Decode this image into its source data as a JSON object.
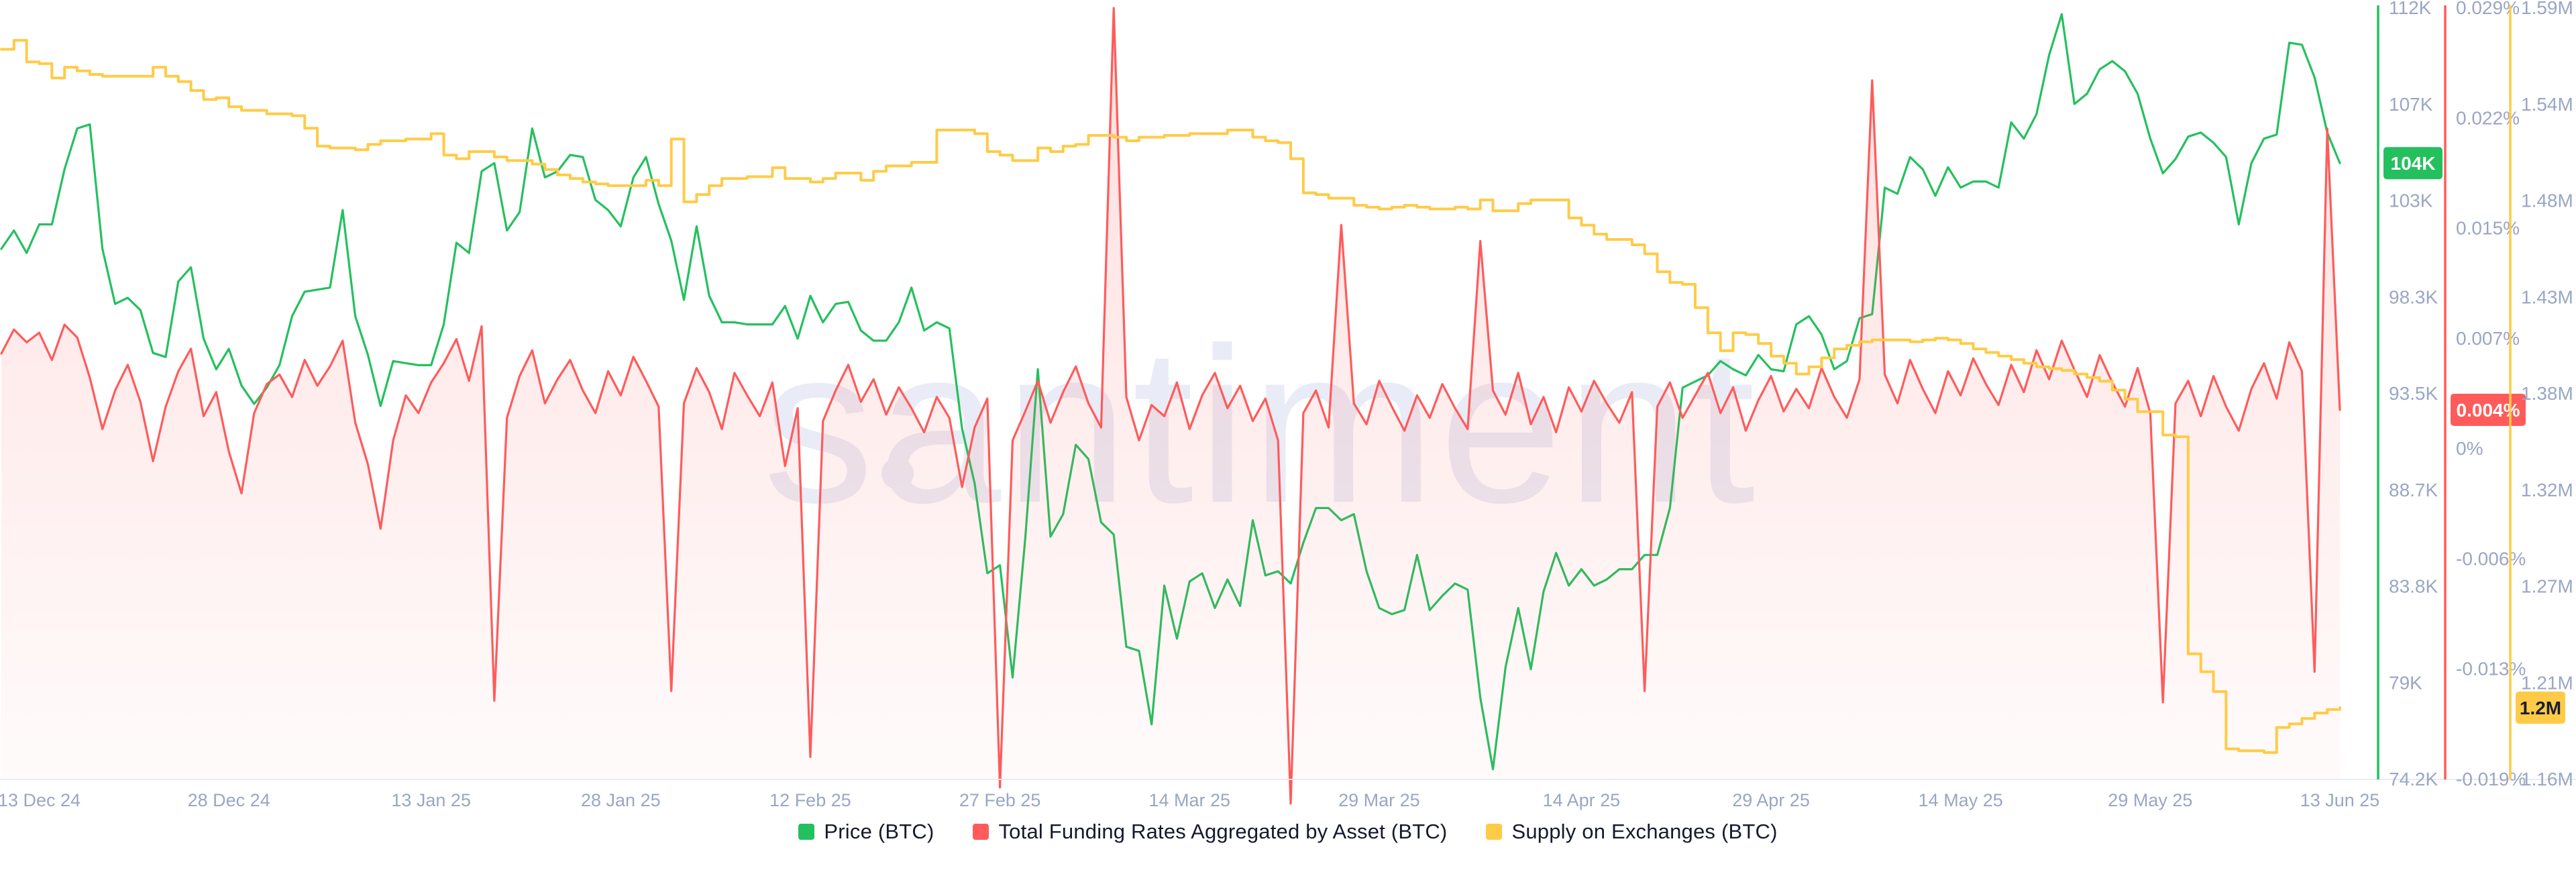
{
  "watermark": "santiment",
  "colors": {
    "price": "#24c05e",
    "funding": "#ff5b5b",
    "supply": "#ffcb47",
    "axis_text": "#9aa6c4",
    "axis_line_bottom": "#e8ebf3",
    "watermark": "#e9ecf6",
    "badge_text_light": "#ffffff",
    "badge_text_dark": "#1b1e33",
    "legend_text": "#15192d",
    "funding_fill_top": "rgba(255,91,91,0.20)",
    "funding_fill_bottom": "rgba(255,91,91,0.02)"
  },
  "legend": [
    {
      "id": "price",
      "label": "Price (BTC)"
    },
    {
      "id": "funding",
      "label": "Total Funding Rates Aggregated by Asset (BTC)"
    },
    {
      "id": "supply",
      "label": "Supply on Exchanges (BTC)"
    }
  ],
  "chart_data": {
    "type": "line",
    "title": "",
    "grid": false,
    "legend_position": "bottom",
    "n_points": 186,
    "x_tick_labels": [
      "13 Dec 24",
      "28 Dec 24",
      "13 Jan 25",
      "28 Jan 25",
      "12 Feb 25",
      "27 Feb 25",
      "14 Mar 25",
      "29 Mar 25",
      "14 Apr 25",
      "29 Apr 25",
      "14 May 25",
      "29 May 25",
      "13 Jun 25"
    ],
    "x_tick_day_index": [
      3,
      18,
      34,
      49,
      64,
      79,
      94,
      109,
      125,
      140,
      155,
      170,
      185
    ],
    "axes": {
      "price": {
        "min": 74.2,
        "max": 112,
        "ticks": [
          "112K",
          "107K",
          "103K",
          "98.3K",
          "93.5K",
          "88.7K",
          "83.8K",
          "79K",
          "74.2K"
        ],
        "current_label": "104K",
        "current_value": 104.4
      },
      "funding": {
        "min": -0.019,
        "max": 0.029,
        "ticks": [
          "0.029%",
          "0.022%",
          "0.015%",
          "0.007%",
          "0%",
          "-0.006%",
          "-0.013%",
          "-0.019%"
        ],
        "current_label": "0.004%",
        "current_value": 0.004
      },
      "supply": {
        "min": 1.16,
        "max": 1.59,
        "ticks": [
          "1.59M",
          "1.54M",
          "1.48M",
          "1.43M",
          "1.38M",
          "1.32M",
          "1.27M",
          "1.21M",
          "1.16M"
        ],
        "current_label": "1.2M",
        "current_value": 1.2
      }
    },
    "series": [
      {
        "name": "Price (BTC)",
        "axis": "price",
        "unit": "K USD",
        "render": "line",
        "values": [
          100.2,
          101.1,
          100.0,
          101.4,
          101.4,
          104.1,
          106.1,
          106.3,
          100.2,
          97.5,
          97.8,
          97.2,
          95.1,
          94.9,
          98.6,
          99.3,
          95.8,
          94.3,
          95.3,
          93.5,
          92.6,
          93.4,
          94.5,
          96.9,
          98.1,
          98.2,
          98.3,
          102.1,
          96.9,
          95.0,
          92.5,
          94.7,
          94.6,
          94.5,
          94.5,
          96.5,
          100.5,
          100.0,
          104.0,
          104.4,
          101.1,
          102.0,
          106.1,
          103.7,
          104.0,
          104.8,
          104.7,
          102.6,
          102.1,
          101.3,
          103.7,
          104.7,
          102.4,
          100.6,
          97.7,
          101.3,
          97.9,
          96.6,
          96.6,
          96.5,
          96.5,
          96.5,
          97.4,
          95.8,
          97.9,
          96.6,
          97.5,
          97.6,
          96.2,
          95.7,
          95.7,
          96.6,
          98.3,
          96.2,
          96.6,
          96.3,
          91.4,
          88.7,
          84.3,
          84.7,
          79.2,
          86.0,
          94.3,
          86.1,
          87.2,
          90.6,
          89.9,
          86.8,
          86.2,
          80.7,
          80.5,
          76.9,
          83.7,
          81.1,
          83.9,
          84.3,
          82.6,
          84.0,
          82.7,
          86.9,
          84.2,
          84.4,
          83.8,
          85.8,
          87.5,
          87.5,
          86.9,
          87.2,
          84.4,
          82.6,
          82.3,
          82.5,
          85.2,
          82.5,
          83.2,
          83.8,
          83.5,
          78.2,
          74.7,
          79.7,
          82.6,
          79.6,
          83.4,
          85.3,
          83.7,
          84.5,
          83.7,
          84.0,
          84.5,
          84.5,
          85.2,
          85.2,
          87.5,
          93.4,
          93.7,
          94.0,
          94.7,
          94.3,
          94.0,
          95.0,
          94.3,
          94.2,
          96.5,
          96.9,
          96.0,
          94.3,
          94.7,
          96.8,
          97.0,
          103.2,
          102.9,
          104.7,
          104.1,
          102.8,
          104.2,
          103.2,
          103.5,
          103.5,
          103.2,
          106.4,
          105.6,
          106.8,
          109.7,
          111.7,
          107.3,
          107.8,
          109.0,
          109.4,
          108.9,
          107.8,
          105.6,
          103.9,
          104.6,
          105.7,
          105.9,
          105.4,
          104.7,
          101.4,
          104.4,
          105.6,
          105.8,
          110.3,
          110.2,
          108.6,
          105.9,
          104.4
        ]
      },
      {
        "name": "Total Funding Rates Aggregated by Asset (BTC)",
        "axis": "funding",
        "unit": "%",
        "render": "line_area",
        "values": [
          0.0075,
          0.009,
          0.0082,
          0.0088,
          0.0071,
          0.0093,
          0.0085,
          0.006,
          0.0028,
          0.0052,
          0.0068,
          0.0045,
          0.0008,
          0.0042,
          0.0064,
          0.0078,
          0.0036,
          0.0051,
          0.0014,
          -0.0012,
          0.0038,
          0.0056,
          0.0062,
          0.0048,
          0.0071,
          0.0055,
          0.0067,
          0.0083,
          0.0032,
          0.0006,
          -0.0034,
          0.0021,
          0.0049,
          0.0038,
          0.0057,
          0.0069,
          0.0084,
          0.0058,
          0.0092,
          -0.0141,
          0.0035,
          0.0061,
          0.0077,
          0.0044,
          0.0059,
          0.0071,
          0.0052,
          0.0038,
          0.0064,
          0.0049,
          0.0073,
          0.0058,
          0.0042,
          -0.0135,
          0.0044,
          0.0066,
          0.0051,
          0.0028,
          0.0063,
          0.0049,
          0.0036,
          0.0057,
          0.0005,
          0.0041,
          -0.0176,
          0.0033,
          0.0052,
          0.0068,
          0.0045,
          0.0059,
          0.0037,
          0.0054,
          0.0041,
          0.0026,
          0.0048,
          0.0035,
          -0.0008,
          0.0029,
          0.0047,
          -0.0195,
          0.0021,
          0.0039,
          0.0058,
          0.0032,
          0.0051,
          0.0067,
          0.0044,
          0.0029,
          0.029,
          0.0048,
          0.0021,
          0.0043,
          0.0036,
          0.0057,
          0.0028,
          0.0049,
          0.0063,
          0.0041,
          0.0055,
          0.0033,
          0.0047,
          0.0021,
          -0.0205,
          0.0038,
          0.0052,
          0.0029,
          0.0155,
          0.0044,
          0.0031,
          0.0058,
          0.0042,
          0.0027,
          0.0049,
          0.0035,
          0.0056,
          0.0041,
          0.0028,
          0.0145,
          0.0052,
          0.0037,
          0.0063,
          0.0031,
          0.0048,
          0.0026,
          0.0054,
          0.0039,
          0.0058,
          0.0044,
          0.0032,
          0.0051,
          -0.0135,
          0.0042,
          0.0057,
          0.0035,
          0.0049,
          0.0063,
          0.0038,
          0.0054,
          0.0027,
          0.0046,
          0.0061,
          0.0039,
          0.0053,
          0.0041,
          0.0066,
          0.0048,
          0.0035,
          0.0059,
          0.0245,
          0.0062,
          0.0044,
          0.0071,
          0.0053,
          0.0038,
          0.0064,
          0.0049,
          0.0072,
          0.0056,
          0.0043,
          0.0068,
          0.0051,
          0.0077,
          0.0059,
          0.0083,
          0.0065,
          0.0048,
          0.0074,
          0.0057,
          0.0042,
          0.0066,
          0.0038,
          -0.0142,
          0.0044,
          0.0058,
          0.0036,
          0.0061,
          0.0042,
          0.0027,
          0.0053,
          0.0069,
          0.0047,
          0.0082,
          0.0064,
          -0.0123,
          0.0215,
          0.004
        ]
      },
      {
        "name": "Supply on Exchanges (BTC)",
        "axis": "supply",
        "unit": "M BTC",
        "render": "step",
        "values": [
          1.567,
          1.572,
          1.56,
          1.559,
          1.551,
          1.557,
          1.555,
          1.553,
          1.552,
          1.552,
          1.552,
          1.552,
          1.557,
          1.552,
          1.549,
          1.544,
          1.539,
          1.54,
          1.535,
          1.533,
          1.533,
          1.531,
          1.531,
          1.53,
          1.523,
          1.513,
          1.512,
          1.512,
          1.511,
          1.514,
          1.516,
          1.516,
          1.517,
          1.517,
          1.52,
          1.508,
          1.506,
          1.51,
          1.51,
          1.507,
          1.505,
          1.505,
          1.503,
          1.5,
          1.497,
          1.495,
          1.493,
          1.492,
          1.491,
          1.491,
          1.491,
          1.494,
          1.491,
          1.517,
          1.482,
          1.486,
          1.491,
          1.495,
          1.495,
          1.496,
          1.496,
          1.501,
          1.495,
          1.495,
          1.493,
          1.495,
          1.498,
          1.498,
          1.494,
          1.499,
          1.502,
          1.502,
          1.504,
          1.504,
          1.522,
          1.522,
          1.522,
          1.52,
          1.51,
          1.508,
          1.505,
          1.505,
          1.512,
          1.51,
          1.513,
          1.514,
          1.519,
          1.519,
          1.518,
          1.516,
          1.518,
          1.518,
          1.519,
          1.519,
          1.52,
          1.52,
          1.52,
          1.522,
          1.522,
          1.518,
          1.516,
          1.515,
          1.506,
          1.487,
          1.486,
          1.484,
          1.484,
          1.48,
          1.479,
          1.478,
          1.479,
          1.48,
          1.479,
          1.478,
          1.478,
          1.479,
          1.478,
          1.483,
          1.477,
          1.477,
          1.481,
          1.483,
          1.483,
          1.483,
          1.473,
          1.469,
          1.464,
          1.461,
          1.461,
          1.458,
          1.453,
          1.443,
          1.437,
          1.436,
          1.423,
          1.409,
          1.399,
          1.409,
          1.408,
          1.403,
          1.396,
          1.392,
          1.386,
          1.39,
          1.395,
          1.4,
          1.402,
          1.404,
          1.405,
          1.405,
          1.405,
          1.404,
          1.405,
          1.406,
          1.405,
          1.403,
          1.4,
          1.398,
          1.396,
          1.394,
          1.392,
          1.39,
          1.389,
          1.388,
          1.386,
          1.384,
          1.382,
          1.377,
          1.372,
          1.365,
          1.365,
          1.352,
          1.351,
          1.23,
          1.22,
          1.209,
          1.177,
          1.176,
          1.176,
          1.175,
          1.189,
          1.191,
          1.194,
          1.197,
          1.199,
          1.2
        ]
      }
    ]
  }
}
